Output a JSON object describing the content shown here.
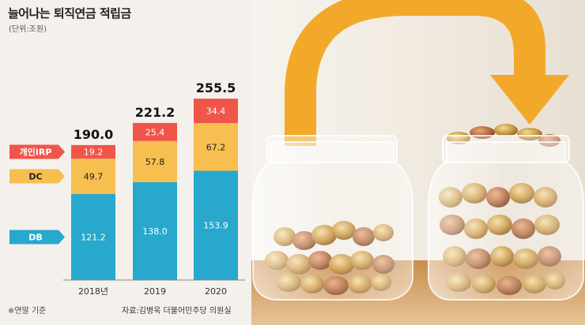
{
  "chart_data": {
    "type": "bar",
    "stacked": true,
    "title": "늘어나는 퇴직연금 적립금",
    "unit": "(단위:조원)",
    "categories": [
      "2018년",
      "2019",
      "2020"
    ],
    "series": [
      {
        "name": "DB",
        "values": [
          "121.2",
          "138.0",
          "153.9"
        ],
        "color": "#27a8cc",
        "label_bg": "#27a8cc",
        "label_color": "#ffffff"
      },
      {
        "name": "DC",
        "values": [
          "49.7",
          "57.8",
          "67.2"
        ],
        "color": "#f7be50",
        "label_bg": "#f7be50",
        "label_color": "#222222"
      },
      {
        "name": "개인IRP",
        "values": [
          "19.2",
          "25.4",
          "34.4"
        ],
        "color": "#f0554a",
        "label_bg": "#f0554a",
        "label_color": "#ffffff"
      }
    ],
    "totals": [
      "190.0",
      "221.2",
      "255.5"
    ],
    "note": "※연말 기준",
    "source": "자료:김병욱 더불어민주당 의원실"
  }
}
